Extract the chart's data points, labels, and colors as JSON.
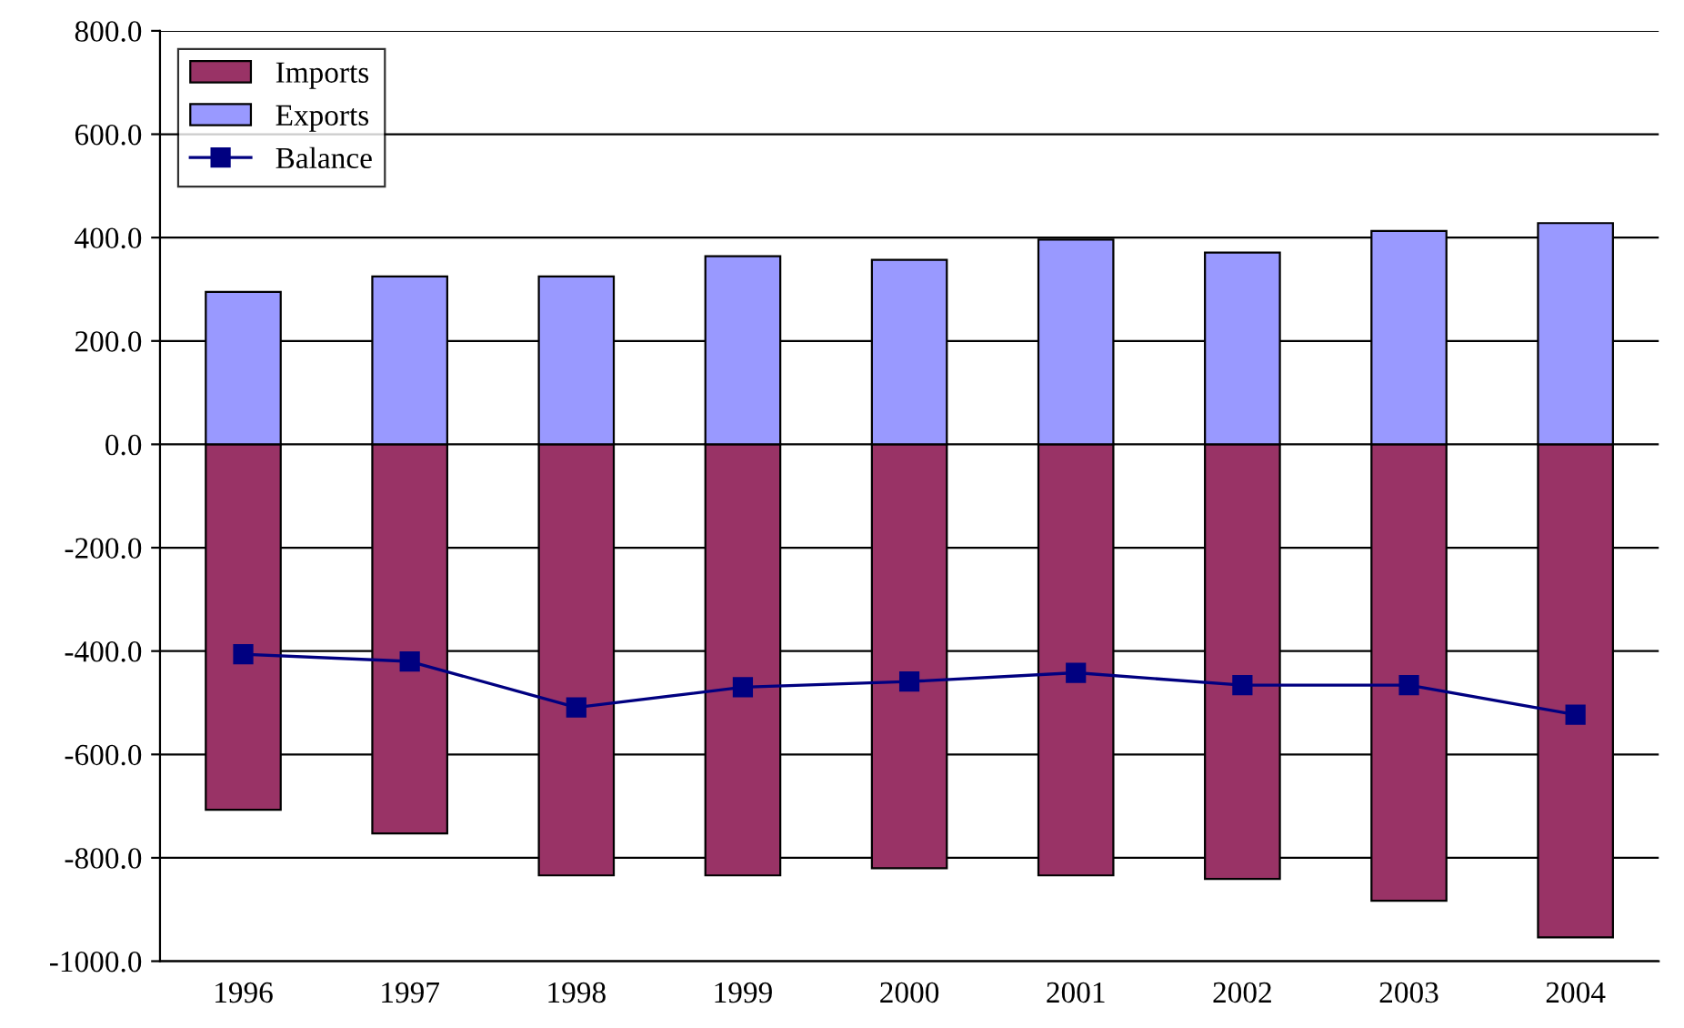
{
  "chart_data": {
    "type": "bar",
    "stacked": true,
    "categories": [
      "1996",
      "1997",
      "1998",
      "1999",
      "2000",
      "2001",
      "2002",
      "2003",
      "2004"
    ],
    "series": [
      {
        "name": "Imports",
        "color": "#993366",
        "values": [
          -707,
          -753,
          -834,
          -834,
          -820,
          -834,
          -841,
          -883,
          -954
        ]
      },
      {
        "name": "Exports",
        "color": "#9999ff",
        "values": [
          295,
          325,
          325,
          364,
          357,
          396,
          371,
          413,
          428
        ]
      },
      {
        "name": "Balance",
        "type": "line",
        "color": "#000080",
        "marker": "square",
        "line_style": "solid",
        "values": [
          -406,
          -420,
          -509,
          -470,
          -459,
          -442,
          -466,
          -466,
          -523
        ]
      }
    ],
    "ylim": [
      -1000,
      800
    ],
    "yticks": [
      {
        "value": -1000,
        "label": "-1000.0"
      },
      {
        "value": -800,
        "label": "-800.0"
      },
      {
        "value": -600,
        "label": "-600.0"
      },
      {
        "value": -400,
        "label": "-400.0"
      },
      {
        "value": -200,
        "label": "-200.0"
      },
      {
        "value": 0,
        "label": "0.0"
      },
      {
        "value": 200,
        "label": "200.0"
      },
      {
        "value": 400,
        "label": "400.0"
      },
      {
        "value": 600,
        "label": "600.0"
      },
      {
        "value": 800,
        "label": "800.0"
      }
    ],
    "grid": "y",
    "legend": "top left"
  }
}
